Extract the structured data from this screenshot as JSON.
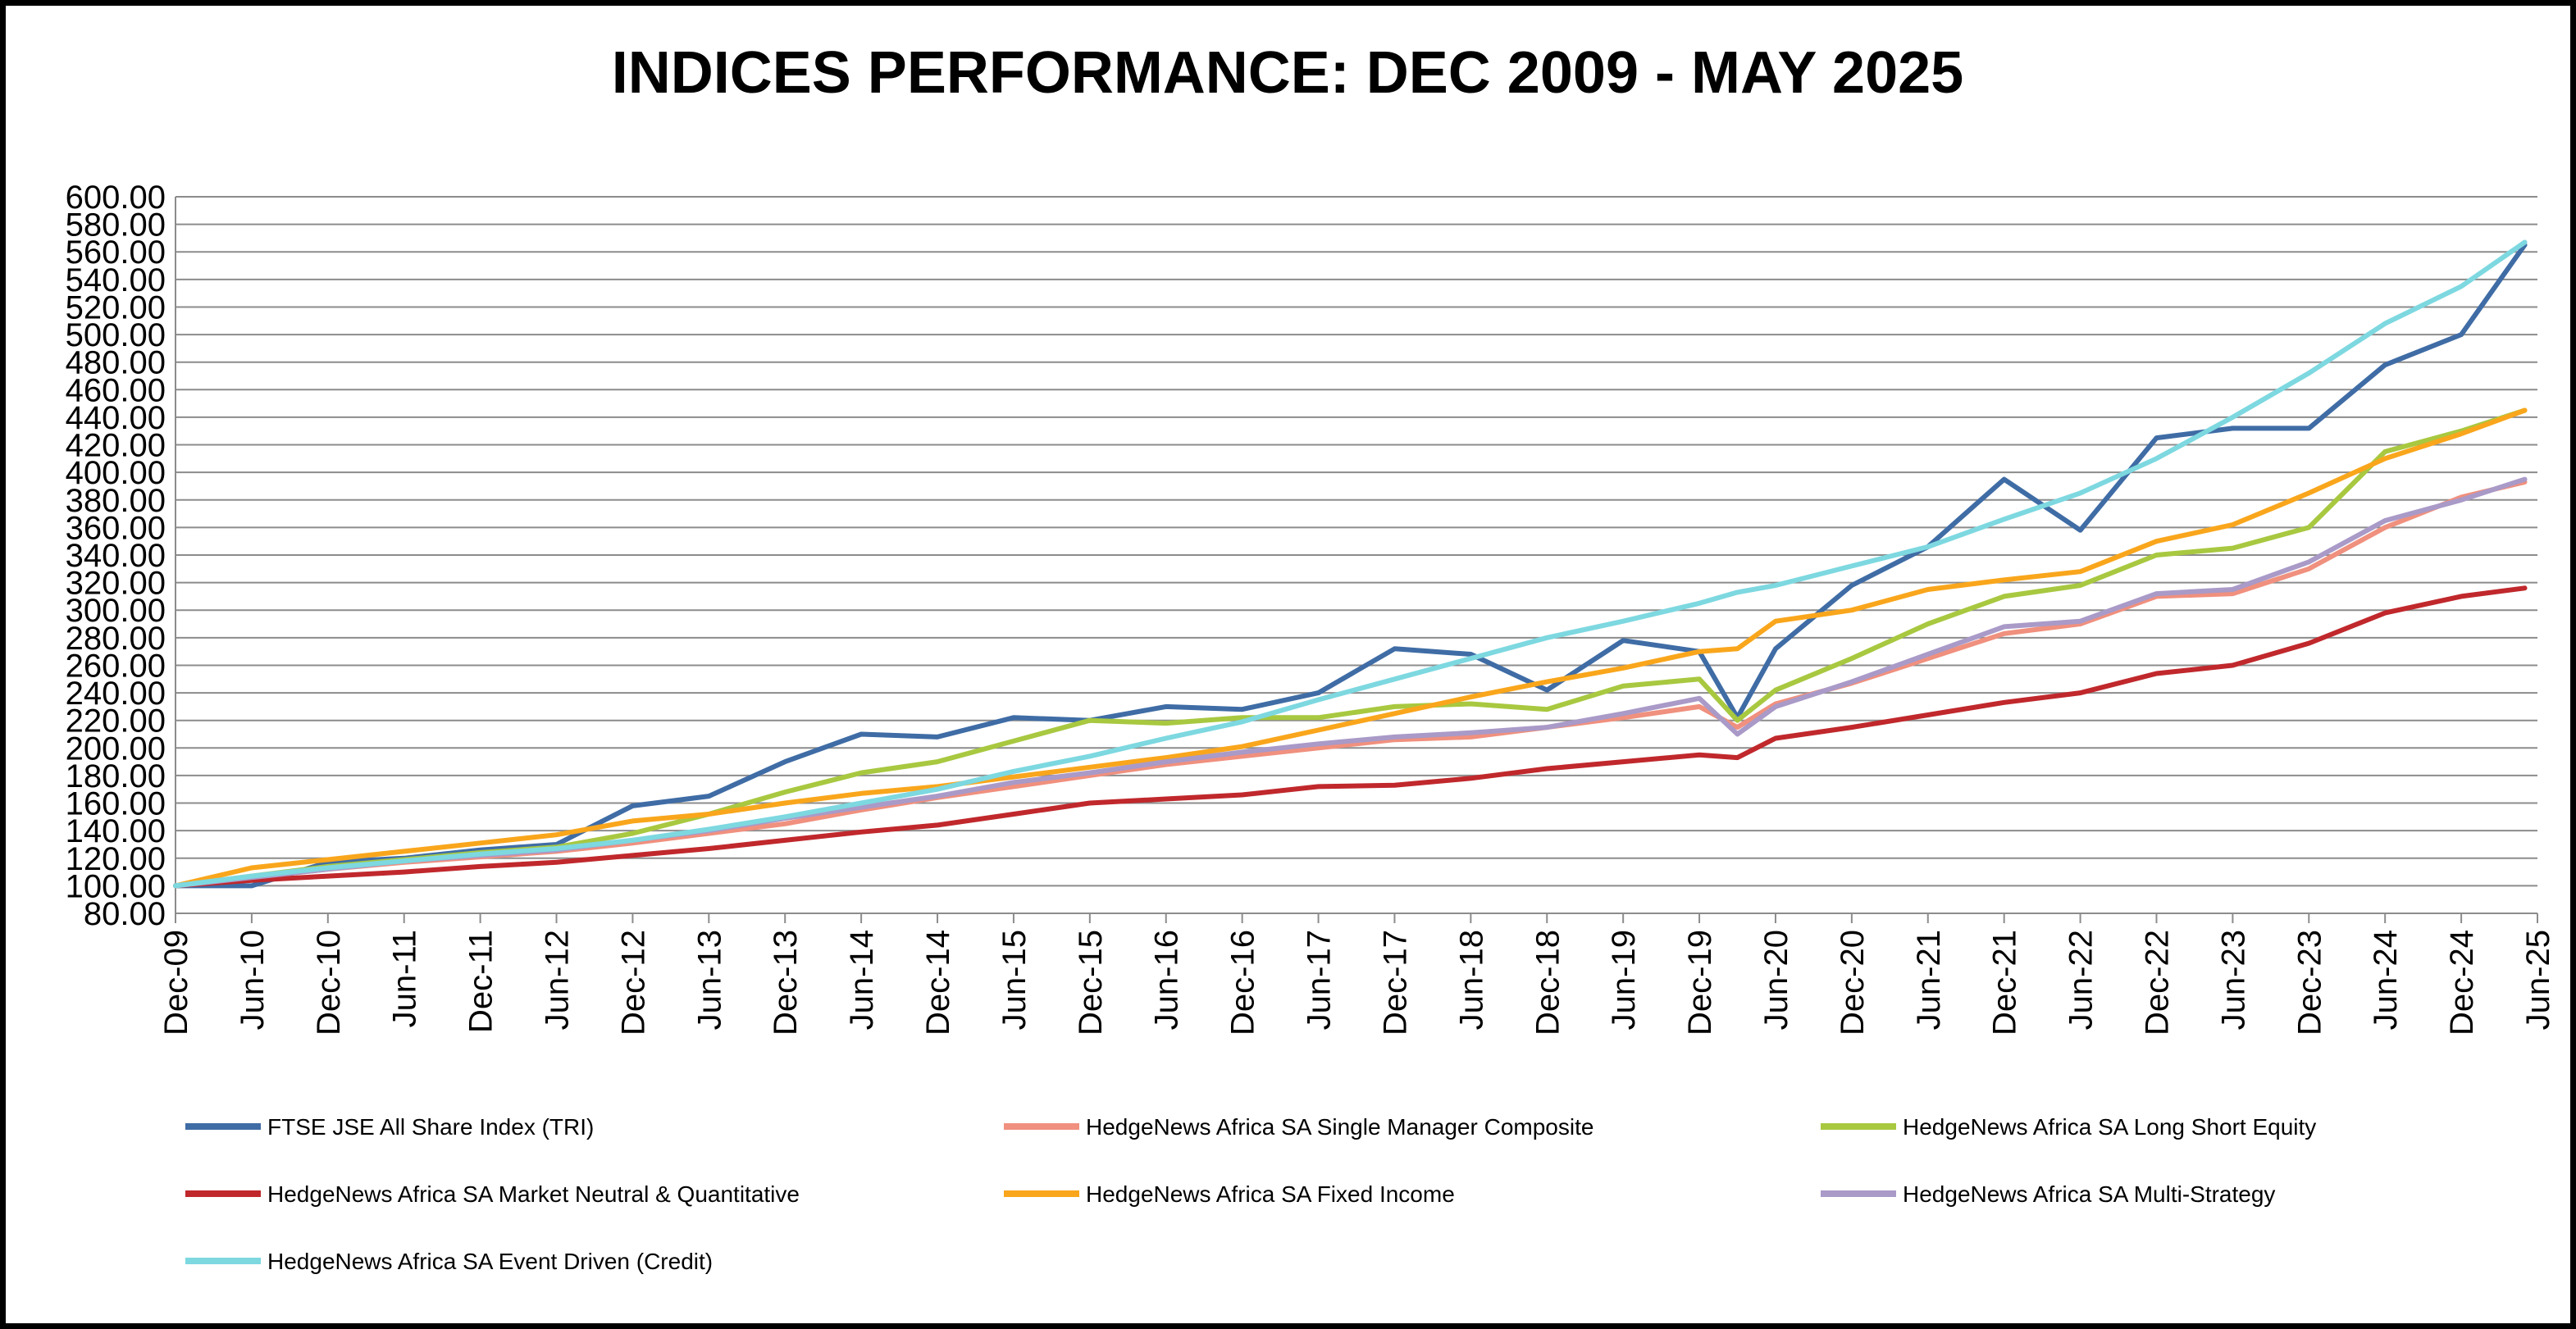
{
  "chart_data": {
    "type": "line",
    "title": "INDICES PERFORMANCE: DEC 2009 - MAY 2025",
    "xlabel": "",
    "ylabel": "",
    "ylim": [
      80,
      600
    ],
    "y_ticks": [
      "80.00",
      "100.00",
      "120.00",
      "140.00",
      "160.00",
      "180.00",
      "200.00",
      "220.00",
      "240.00",
      "260.00",
      "280.00",
      "300.00",
      "320.00",
      "340.00",
      "360.00",
      "380.00",
      "400.00",
      "420.00",
      "440.00",
      "460.00",
      "480.00",
      "500.00",
      "520.00",
      "540.00",
      "560.00",
      "580.00",
      "600.00"
    ],
    "x_ticks": [
      "Dec-09",
      "Jun-10",
      "Dec-10",
      "Jun-11",
      "Dec-11",
      "Jun-12",
      "Dec-12",
      "Jun-13",
      "Dec-13",
      "Jun-14",
      "Dec-14",
      "Jun-15",
      "Dec-15",
      "Jun-16",
      "Dec-16",
      "Jun-17",
      "Dec-17",
      "Jun-18",
      "Dec-18",
      "Jun-19",
      "Dec-19",
      "Jun-20",
      "Dec-20",
      "Jun-21",
      "Dec-21",
      "Jun-22",
      "Dec-22",
      "Jun-23",
      "Dec-23",
      "Jun-24",
      "Dec-24",
      "Jun-25"
    ],
    "grid": true,
    "legend_position": "bottom",
    "anchor_months": [
      "Dec-09",
      "Jun-10",
      "Dec-10",
      "Jun-11",
      "Dec-11",
      "Jun-12",
      "Dec-12",
      "Jun-13",
      "Dec-13",
      "Jun-14",
      "Dec-14",
      "Jun-15",
      "Dec-15",
      "Jun-16",
      "Dec-16",
      "Jun-17",
      "Dec-17",
      "Jun-18",
      "Dec-18",
      "Jun-19",
      "Dec-19",
      "Mar-20",
      "Jun-20",
      "Dec-20",
      "Jun-21",
      "Dec-21",
      "Jun-22",
      "Dec-22",
      "Jun-23",
      "Dec-23",
      "Jun-24",
      "Dec-24",
      "May-25"
    ],
    "series": [
      {
        "name": "FTSE JSE All Share Index (TRI)",
        "color": "#3F6CA5",
        "months": [
          "Dec-09",
          "Jun-10",
          "Dec-10",
          "Jun-11",
          "Dec-11",
          "Jun-12",
          "Dec-12",
          "Jun-13",
          "Dec-13",
          "Jun-14",
          "Dec-14",
          "Jun-15",
          "Dec-15",
          "Jun-16",
          "Dec-16",
          "Jun-17",
          "Dec-17",
          "Jun-18",
          "Dec-18",
          "Jun-19",
          "Dec-19",
          "Mar-20",
          "Jun-20",
          "Dec-20",
          "Jun-21",
          "Dec-21",
          "Jun-22",
          "Dec-22",
          "Jun-23",
          "Dec-23",
          "Jun-24",
          "Dec-24",
          "May-25"
        ],
        "values": [
          100,
          100,
          117,
          120,
          126,
          130,
          158,
          165,
          190,
          210,
          208,
          222,
          220,
          230,
          228,
          240,
          272,
          268,
          242,
          278,
          270,
          222,
          272,
          318,
          346,
          395,
          358,
          425,
          432,
          432,
          478,
          500,
          565
        ]
      },
      {
        "name": "HedgeNews Africa SA Single Manager Composite",
        "color": "#F0907E",
        "months": [
          "Dec-09",
          "Jun-10",
          "Dec-10",
          "Jun-11",
          "Dec-11",
          "Jun-12",
          "Dec-12",
          "Jun-13",
          "Dec-13",
          "Jun-14",
          "Dec-14",
          "Jun-15",
          "Dec-15",
          "Jun-16",
          "Dec-16",
          "Jun-17",
          "Dec-17",
          "Jun-18",
          "Dec-18",
          "Jun-19",
          "Dec-19",
          "Mar-20",
          "Jun-20",
          "Dec-20",
          "Jun-21",
          "Dec-21",
          "Jun-22",
          "Dec-22",
          "Jun-23",
          "Dec-23",
          "Jun-24",
          "Dec-24",
          "May-25"
        ],
        "values": [
          100,
          106,
          112,
          117,
          121,
          125,
          131,
          138,
          145,
          155,
          164,
          172,
          180,
          188,
          194,
          200,
          206,
          208,
          215,
          222,
          230,
          215,
          232,
          247,
          265,
          283,
          290,
          310,
          312,
          330,
          360,
          382,
          393
        ]
      },
      {
        "name": "HedgeNews Africa SA Long Short Equity",
        "color": "#A8C840",
        "months": [
          "Dec-09",
          "Jun-10",
          "Dec-10",
          "Jun-11",
          "Dec-11",
          "Jun-12",
          "Dec-12",
          "Jun-13",
          "Dec-13",
          "Jun-14",
          "Dec-14",
          "Jun-15",
          "Dec-15",
          "Jun-16",
          "Dec-16",
          "Jun-17",
          "Dec-17",
          "Jun-18",
          "Dec-18",
          "Jun-19",
          "Dec-19",
          "Mar-20",
          "Jun-20",
          "Dec-20",
          "Jun-21",
          "Dec-21",
          "Jun-22",
          "Dec-22",
          "Jun-23",
          "Dec-23",
          "Jun-24",
          "Dec-24",
          "May-25"
        ],
        "values": [
          100,
          107,
          114,
          119,
          124,
          128,
          138,
          152,
          168,
          182,
          190,
          205,
          220,
          218,
          222,
          222,
          230,
          232,
          228,
          245,
          250,
          220,
          242,
          265,
          290,
          310,
          318,
          340,
          345,
          360,
          415,
          430,
          445
        ]
      },
      {
        "name": "HedgeNews Africa SA Market Neutral & Quantitative",
        "color": "#C0282C",
        "months": [
          "Dec-09",
          "Jun-10",
          "Dec-10",
          "Jun-11",
          "Dec-11",
          "Jun-12",
          "Dec-12",
          "Jun-13",
          "Dec-13",
          "Jun-14",
          "Dec-14",
          "Jun-15",
          "Dec-15",
          "Jun-16",
          "Dec-16",
          "Jun-17",
          "Dec-17",
          "Jun-18",
          "Dec-18",
          "Jun-19",
          "Dec-19",
          "Mar-20",
          "Jun-20",
          "Dec-20",
          "Jun-21",
          "Dec-21",
          "Jun-22",
          "Dec-22",
          "Jun-23",
          "Dec-23",
          "Jun-24",
          "Dec-24",
          "May-25"
        ],
        "values": [
          100,
          104,
          107,
          110,
          114,
          117,
          122,
          127,
          133,
          139,
          144,
          152,
          160,
          163,
          166,
          172,
          173,
          178,
          185,
          190,
          195,
          193,
          207,
          215,
          224,
          233,
          240,
          254,
          260,
          276,
          298,
          310,
          316
        ]
      },
      {
        "name": "HedgeNews Africa SA Fixed Income",
        "color": "#F9A61C",
        "months": [
          "Dec-09",
          "Jun-10",
          "Dec-10",
          "Jun-11",
          "Dec-11",
          "Jun-12",
          "Dec-12",
          "Jun-13",
          "Dec-13",
          "Jun-14",
          "Dec-14",
          "Jun-15",
          "Dec-15",
          "Jun-16",
          "Dec-16",
          "Jun-17",
          "Dec-17",
          "Jun-18",
          "Dec-18",
          "Jun-19",
          "Dec-19",
          "Mar-20",
          "Jun-20",
          "Dec-20",
          "Jun-21",
          "Dec-21",
          "Jun-22",
          "Dec-22",
          "Jun-23",
          "Dec-23",
          "Jun-24",
          "Dec-24",
          "May-25"
        ],
        "values": [
          100,
          113,
          119,
          125,
          131,
          137,
          147,
          152,
          160,
          167,
          172,
          179,
          186,
          193,
          201,
          213,
          225,
          237,
          248,
          258,
          270,
          272,
          292,
          300,
          315,
          322,
          328,
          350,
          362,
          385,
          410,
          428,
          445
        ]
      },
      {
        "name": "HedgeNews Africa SA Multi-Strategy",
        "color": "#A99AC8",
        "months": [
          "Dec-09",
          "Jun-10",
          "Dec-10",
          "Jun-11",
          "Dec-11",
          "Jun-12",
          "Dec-12",
          "Jun-13",
          "Dec-13",
          "Jun-14",
          "Dec-14",
          "Jun-15",
          "Dec-15",
          "Jun-16",
          "Dec-16",
          "Jun-17",
          "Dec-17",
          "Jun-18",
          "Dec-18",
          "Jun-19",
          "Dec-19",
          "Mar-20",
          "Jun-20",
          "Dec-20",
          "Jun-21",
          "Dec-21",
          "Jun-22",
          "Dec-22",
          "Jun-23",
          "Dec-23",
          "Jun-24",
          "Dec-24",
          "May-25"
        ],
        "values": [
          100,
          106,
          112,
          118,
          122,
          126,
          133,
          140,
          149,
          157,
          165,
          175,
          182,
          190,
          197,
          203,
          208,
          211,
          215,
          225,
          236,
          210,
          230,
          248,
          268,
          288,
          292,
          312,
          315,
          335,
          365,
          380,
          395
        ]
      },
      {
        "name": "HedgeNews Africa SA Event Driven (Credit)",
        "color": "#7DD8E0",
        "months": [
          "Dec-09",
          "Jun-10",
          "Dec-10",
          "Jun-11",
          "Dec-11",
          "Jun-12",
          "Dec-12",
          "Jun-13",
          "Dec-13",
          "Jun-14",
          "Dec-14",
          "Jun-15",
          "Dec-15",
          "Jun-16",
          "Dec-16",
          "Jun-17",
          "Dec-17",
          "Jun-18",
          "Dec-18",
          "Jun-19",
          "Dec-19",
          "Mar-20",
          "Jun-20",
          "Dec-20",
          "Jun-21",
          "Dec-21",
          "Jun-22",
          "Dec-22",
          "Jun-23",
          "Dec-23",
          "Jun-24",
          "Dec-24",
          "May-25"
        ],
        "values": [
          100,
          107,
          113,
          118,
          123,
          127,
          133,
          141,
          150,
          160,
          170,
          183,
          194,
          207,
          219,
          235,
          250,
          265,
          280,
          292,
          305,
          313,
          318,
          332,
          346,
          366,
          385,
          410,
          440,
          472,
          508,
          535,
          567
        ]
      }
    ]
  }
}
